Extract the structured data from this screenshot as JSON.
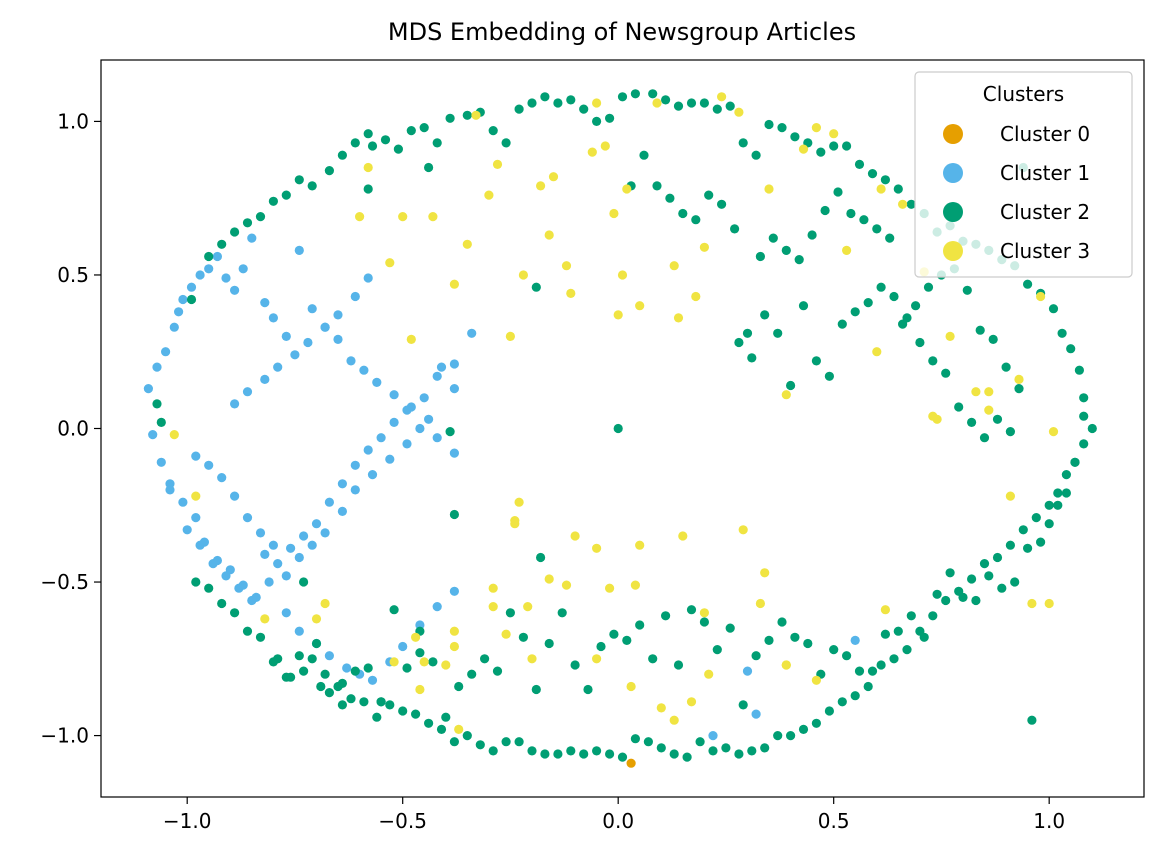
{
  "chart_data": {
    "type": "scatter",
    "title": "MDS Embedding of Newsgroup Articles",
    "xlabel": "",
    "ylabel": "",
    "xlim": [
      -1.2,
      1.22
    ],
    "ylim": [
      -1.2,
      1.2
    ],
    "x_ticks": [
      -1.0,
      -0.5,
      0.0,
      0.5,
      1.0
    ],
    "x_tick_labels": [
      "−1.0",
      "−0.5",
      "0.0",
      "0.5",
      "1.0"
    ],
    "y_ticks": [
      -1.0,
      -0.5,
      0.0,
      0.5,
      1.0
    ],
    "y_tick_labels": [
      "−1.0",
      "−0.5",
      "0.0",
      "0.5",
      "1.0"
    ],
    "grid": false,
    "legend": {
      "title": "Clusters",
      "placement": "upper right"
    },
    "series": [
      {
        "name": "Cluster 0",
        "color": "#E69F00",
        "x": [
          0.03
        ],
        "y": [
          -1.09
        ]
      },
      {
        "name": "Cluster 1",
        "color": "#56B4E9",
        "x": [
          -1.09,
          -1.07,
          -1.05,
          -1.03,
          -1.02,
          -1.01,
          -0.99,
          -0.97,
          -0.95,
          -0.93,
          -0.91,
          -0.89,
          -0.87,
          -0.85,
          -0.82,
          -0.8,
          -0.77,
          -0.74,
          -0.71,
          -0.68,
          -0.65,
          -0.62,
          -0.59,
          -0.56,
          -0.52,
          -0.48,
          -0.44,
          -0.41,
          -0.38,
          -1.08,
          -1.06,
          -1.04,
          -1.01,
          -0.98,
          -0.96,
          -0.93,
          -0.9,
          -0.87,
          -0.84,
          -0.81,
          -0.77,
          -0.74,
          -0.71,
          -0.68,
          -0.64,
          -0.61,
          -0.57,
          -0.53,
          -0.49,
          -0.46,
          -0.42,
          -0.38,
          -1.04,
          -1.0,
          -0.97,
          -0.94,
          -0.91,
          -0.88,
          -0.85,
          -0.82,
          -0.79,
          -0.76,
          -0.73,
          -0.7,
          -0.67,
          -0.64,
          -0.61,
          -0.58,
          -0.55,
          -0.52,
          -0.49,
          -0.45,
          -0.42,
          -0.38,
          -0.34,
          -0.98,
          -0.95,
          -0.92,
          -0.89,
          -0.86,
          -0.83,
          -0.8,
          -0.77,
          -0.74,
          -0.7,
          -0.67,
          -0.63,
          -0.6,
          -0.57,
          -0.53,
          -0.5,
          -0.46,
          -0.42,
          -0.38,
          -0.89,
          -0.86,
          -0.82,
          -0.79,
          -0.75,
          -0.72,
          -0.68,
          -0.65,
          -0.61,
          -0.58,
          0.55,
          0.3,
          0.22,
          0.32
        ],
        "y": [
          0.13,
          0.2,
          0.25,
          0.33,
          0.38,
          0.42,
          0.46,
          0.5,
          0.52,
          0.56,
          0.49,
          0.45,
          0.52,
          0.62,
          0.41,
          0.36,
          0.3,
          0.58,
          0.39,
          0.33,
          0.29,
          0.22,
          0.19,
          0.15,
          0.11,
          0.07,
          0.03,
          0.2,
          0.13,
          -0.02,
          -0.11,
          -0.18,
          -0.24,
          -0.29,
          -0.37,
          -0.43,
          -0.46,
          -0.51,
          -0.55,
          -0.5,
          -0.48,
          -0.42,
          -0.38,
          -0.34,
          -0.27,
          -0.2,
          -0.15,
          -0.1,
          -0.05,
          0.0,
          -0.03,
          -0.08,
          -0.2,
          -0.33,
          -0.38,
          -0.44,
          -0.48,
          -0.52,
          -0.56,
          -0.41,
          -0.44,
          -0.39,
          -0.35,
          -0.31,
          -0.24,
          -0.18,
          -0.12,
          -0.07,
          -0.03,
          0.02,
          0.06,
          0.1,
          0.17,
          0.21,
          0.31,
          -0.09,
          -0.12,
          -0.16,
          -0.22,
          -0.29,
          -0.34,
          -0.38,
          -0.6,
          -0.66,
          -0.7,
          -0.74,
          -0.78,
          -0.8,
          -0.82,
          -0.76,
          -0.71,
          -0.64,
          -0.58,
          -0.53,
          0.08,
          0.12,
          0.16,
          0.2,
          0.24,
          0.28,
          0.33,
          0.37,
          0.43,
          0.49,
          -0.69,
          -0.79,
          -1.0,
          -0.93
        ]
      },
      {
        "name": "Cluster 2",
        "color": "#009E73",
        "x": [
          0.0,
          -1.07,
          -1.06,
          -0.99,
          -0.95,
          -0.92,
          -0.89,
          -0.86,
          -0.83,
          -0.8,
          -0.77,
          -0.74,
          -0.71,
          -0.67,
          -0.64,
          -0.61,
          -0.57,
          -0.54,
          -0.51,
          -0.48,
          -0.45,
          -0.42,
          -0.39,
          -0.35,
          -0.32,
          -0.29,
          -0.26,
          -0.23,
          -0.2,
          -0.17,
          -0.14,
          -0.11,
          -0.08,
          -0.05,
          -0.02,
          0.01,
          0.04,
          0.08,
          0.11,
          0.14,
          0.17,
          0.2,
          0.23,
          0.26,
          0.29,
          0.32,
          0.35,
          0.38,
          0.41,
          0.44,
          0.47,
          0.5,
          0.53,
          0.56,
          0.59,
          0.62,
          0.65,
          0.68,
          0.71,
          0.74,
          0.77,
          0.8,
          0.83,
          0.86,
          0.89,
          0.92,
          0.95,
          0.98,
          1.01,
          1.03,
          1.05,
          1.07,
          1.08,
          1.1,
          1.08,
          1.06,
          1.04,
          1.02,
          1.0,
          0.97,
          0.94,
          0.91,
          0.88,
          0.85,
          0.82,
          0.79,
          0.76,
          0.73,
          0.7,
          0.67,
          0.64,
          0.61,
          0.58,
          0.55,
          0.52,
          0.49,
          0.46,
          0.43,
          0.4,
          0.37,
          0.34,
          0.31,
          0.28,
          0.25,
          0.22,
          0.19,
          0.16,
          0.13,
          0.1,
          0.07,
          0.04,
          0.01,
          -0.02,
          -0.05,
          -0.08,
          -0.11,
          -0.14,
          -0.17,
          -0.2,
          -0.23,
          -0.26,
          -0.29,
          -0.32,
          -0.35,
          -0.38,
          -0.41,
          -0.44,
          -0.47,
          -0.5,
          -0.53,
          -0.56,
          -0.59,
          -0.62,
          -0.65,
          -0.68,
          -0.71,
          -0.74,
          -0.77,
          -0.8,
          -0.83,
          -0.86,
          -0.89,
          -0.92,
          -0.95,
          -0.98,
          1.08,
          1.06,
          1.04,
          1.02,
          1.0,
          0.98,
          0.95,
          0.92,
          0.89,
          0.86,
          0.83,
          0.8,
          0.77,
          0.74,
          0.71,
          0.68,
          0.65,
          0.62,
          0.59,
          0.56,
          0.53,
          0.5,
          0.47,
          0.44,
          0.41,
          0.38,
          0.35,
          0.32,
          0.29,
          0.26,
          0.23,
          0.2,
          0.17,
          0.14,
          0.11,
          0.08,
          0.05,
          0.02,
          -0.01,
          -0.04,
          -0.07,
          -0.1,
          -0.13,
          -0.16,
          -0.19,
          -0.22,
          -0.25,
          -0.28,
          -0.31,
          -0.34,
          -0.37,
          -0.4,
          -0.43,
          -0.46,
          -0.49,
          -0.52,
          -0.55,
          -0.58,
          -0.61,
          -0.64,
          -0.67,
          -0.7,
          -0.73,
          -0.76,
          -0.79,
          0.96,
          0.93,
          0.9,
          0.87,
          0.84,
          0.81,
          0.78,
          0.75,
          0.72,
          0.69,
          0.66,
          0.63,
          0.6,
          0.57,
          0.54,
          0.51,
          0.48,
          0.45,
          0.42,
          0.39,
          0.36,
          0.33,
          0.3,
          0.27,
          0.24,
          0.21,
          0.18,
          0.15,
          0.12,
          0.09,
          0.06,
          0.03,
          0.94,
          0.91,
          0.88,
          0.85,
          0.82,
          0.79,
          0.76,
          0.73,
          0.7,
          0.67,
          0.64,
          0.61,
          0.58,
          0.55,
          0.52,
          0.49,
          0.46,
          0.43,
          0.4,
          0.37,
          0.34,
          0.31,
          0.28,
          -0.38,
          -0.39,
          -0.44,
          -0.19,
          -0.18,
          -0.58,
          -0.46,
          -0.58,
          -0.55,
          -0.64,
          -0.69,
          -0.73
        ],
        "y": [
          0.0,
          0.08,
          0.02,
          0.42,
          0.56,
          0.6,
          0.64,
          0.67,
          0.69,
          0.74,
          0.76,
          0.81,
          0.79,
          0.84,
          0.89,
          0.93,
          0.92,
          0.94,
          0.91,
          0.97,
          0.98,
          0.93,
          1.01,
          1.02,
          1.03,
          0.97,
          0.93,
          1.04,
          1.06,
          1.08,
          1.06,
          1.07,
          1.04,
          1.0,
          1.01,
          1.08,
          1.09,
          1.09,
          1.07,
          1.05,
          1.06,
          1.06,
          1.04,
          1.05,
          0.93,
          0.89,
          0.99,
          0.98,
          0.95,
          0.93,
          0.9,
          0.92,
          0.92,
          0.86,
          0.83,
          0.81,
          0.78,
          0.73,
          0.7,
          0.64,
          0.66,
          0.61,
          0.6,
          0.58,
          0.55,
          0.53,
          0.47,
          0.44,
          0.39,
          0.31,
          0.26,
          0.19,
          0.1,
          0.0,
          -0.05,
          -0.11,
          -0.15,
          -0.21,
          -0.25,
          -0.29,
          -0.33,
          -0.38,
          -0.42,
          -0.44,
          -0.49,
          -0.53,
          -0.56,
          -0.61,
          -0.66,
          -0.72,
          -0.75,
          -0.77,
          -0.84,
          -0.87,
          -0.89,
          -0.92,
          -0.96,
          -0.98,
          -1.0,
          -1.0,
          -1.04,
          -1.05,
          -1.06,
          -1.04,
          -1.05,
          -1.02,
          -1.07,
          -1.06,
          -1.04,
          -1.02,
          -1.01,
          -1.07,
          -1.06,
          -1.05,
          -1.06,
          -1.05,
          -1.06,
          -1.06,
          -1.05,
          -1.02,
          -1.02,
          -1.05,
          -1.03,
          -1.0,
          -1.02,
          -0.98,
          -0.96,
          -0.93,
          -0.92,
          -0.9,
          -0.94,
          -0.89,
          -0.88,
          -0.84,
          -0.8,
          -0.75,
          -0.74,
          -0.81,
          -0.76,
          -0.68,
          -0.66,
          -0.6,
          -0.57,
          -0.52,
          -0.5,
          0.04,
          -0.11,
          -0.21,
          -0.25,
          -0.31,
          -0.37,
          -0.39,
          -0.5,
          -0.52,
          -0.48,
          -0.56,
          -0.55,
          -0.47,
          -0.54,
          -0.68,
          -0.61,
          -0.66,
          -0.67,
          -0.79,
          -0.79,
          -0.74,
          -0.72,
          -0.8,
          -0.7,
          -0.68,
          -0.63,
          -0.69,
          -0.74,
          -0.9,
          -0.65,
          -0.72,
          -0.63,
          -0.59,
          -0.77,
          -0.61,
          -0.75,
          -0.64,
          -0.69,
          -0.67,
          -0.71,
          -0.85,
          -0.77,
          -0.6,
          -0.7,
          -0.85,
          -0.68,
          -0.6,
          -0.79,
          -0.75,
          -0.8,
          -0.84,
          -0.94,
          -0.76,
          -0.66,
          -0.78,
          -0.59,
          -0.89,
          -0.78,
          -0.79,
          -0.83,
          -0.86,
          -0.7,
          -0.5,
          -0.81,
          -0.75,
          -0.95,
          0.13,
          0.2,
          0.29,
          0.32,
          0.45,
          0.52,
          0.5,
          0.46,
          0.4,
          0.34,
          0.62,
          0.65,
          0.68,
          0.7,
          0.77,
          0.71,
          0.63,
          0.55,
          0.58,
          0.62,
          0.56,
          0.31,
          0.65,
          0.73,
          0.76,
          0.68,
          0.7,
          0.75,
          0.79,
          0.89,
          0.79,
          0.85,
          -0.01,
          0.03,
          -0.03,
          0.02,
          0.07,
          0.18,
          0.22,
          0.28,
          0.36,
          0.43,
          0.46,
          0.41,
          0.38,
          0.34,
          0.17,
          0.22,
          0.4,
          0.14,
          0.31,
          0.37,
          0.23,
          0.28,
          -0.28,
          -0.01,
          0.85,
          0.46,
          -0.42,
          0.96,
          -0.73,
          0.78,
          -0.89,
          -0.9,
          -0.84,
          -0.79
        ],
        "note_only_visible": false
      },
      {
        "name": "Cluster 3",
        "color": "#F0E442",
        "x": [
          -1.03,
          -0.98,
          -0.82,
          -0.7,
          -0.68,
          -0.6,
          -0.58,
          -0.53,
          -0.5,
          -0.48,
          -0.47,
          -0.43,
          -0.38,
          -0.37,
          -0.35,
          -0.33,
          -0.3,
          -0.28,
          -0.25,
          -0.24,
          -0.22,
          -0.21,
          -0.18,
          -0.16,
          -0.15,
          -0.12,
          -0.11,
          -0.06,
          -0.05,
          -0.03,
          -0.01,
          0.01,
          0.02,
          0.05,
          0.09,
          0.13,
          0.14,
          0.18,
          0.2,
          0.24,
          0.28,
          0.35,
          0.43,
          0.46,
          0.5,
          0.53,
          0.61,
          0.66,
          0.71,
          0.77,
          0.83,
          0.86,
          0.91,
          0.96,
          1.0,
          1.01,
          0.98,
          0.93,
          0.86,
          0.73,
          0.62,
          0.46,
          0.39,
          0.33,
          0.29,
          0.2,
          0.15,
          0.05,
          -0.05,
          -0.1,
          -0.2,
          -0.26,
          -0.29,
          -0.12,
          0.04,
          -0.02,
          -0.24,
          -0.23,
          -0.16,
          -0.38,
          -0.45,
          -0.52,
          -0.46,
          -0.38,
          -0.05,
          0.03,
          0.13,
          0.21,
          0.39,
          -0.4,
          0.1,
          0.17,
          0.34,
          -0.29,
          0.0,
          0.39,
          0.6,
          0.74
        ],
        "y": [
          -0.02,
          -0.22,
          -0.62,
          -0.62,
          -0.57,
          0.69,
          0.85,
          0.54,
          0.69,
          0.29,
          -0.68,
          0.69,
          0.47,
          -0.98,
          0.6,
          1.02,
          0.76,
          0.86,
          0.3,
          -0.3,
          0.5,
          -0.58,
          0.79,
          0.63,
          0.82,
          0.53,
          0.44,
          0.9,
          1.06,
          0.92,
          0.7,
          0.5,
          0.78,
          0.4,
          1.06,
          0.53,
          0.36,
          0.43,
          0.59,
          1.08,
          1.03,
          0.78,
          0.91,
          0.98,
          0.96,
          0.58,
          0.78,
          0.73,
          0.51,
          0.3,
          0.12,
          0.06,
          -0.22,
          -0.57,
          -0.57,
          -0.01,
          0.43,
          0.16,
          0.12,
          0.04,
          -0.59,
          -0.82,
          -0.77,
          -0.57,
          -0.33,
          -0.6,
          -0.35,
          -0.38,
          -0.39,
          -0.35,
          -0.75,
          -0.67,
          -0.58,
          -0.51,
          -0.51,
          -0.52,
          -0.31,
          -0.24,
          -0.49,
          -0.71,
          -0.76,
          -0.76,
          -0.85,
          -0.66,
          -0.75,
          -0.84,
          -0.95,
          -0.8,
          -0.77,
          -0.77,
          -0.91,
          -0.89,
          -0.47,
          -0.52,
          0.37,
          0.11,
          0.25,
          0.03
        ]
      }
    ]
  }
}
